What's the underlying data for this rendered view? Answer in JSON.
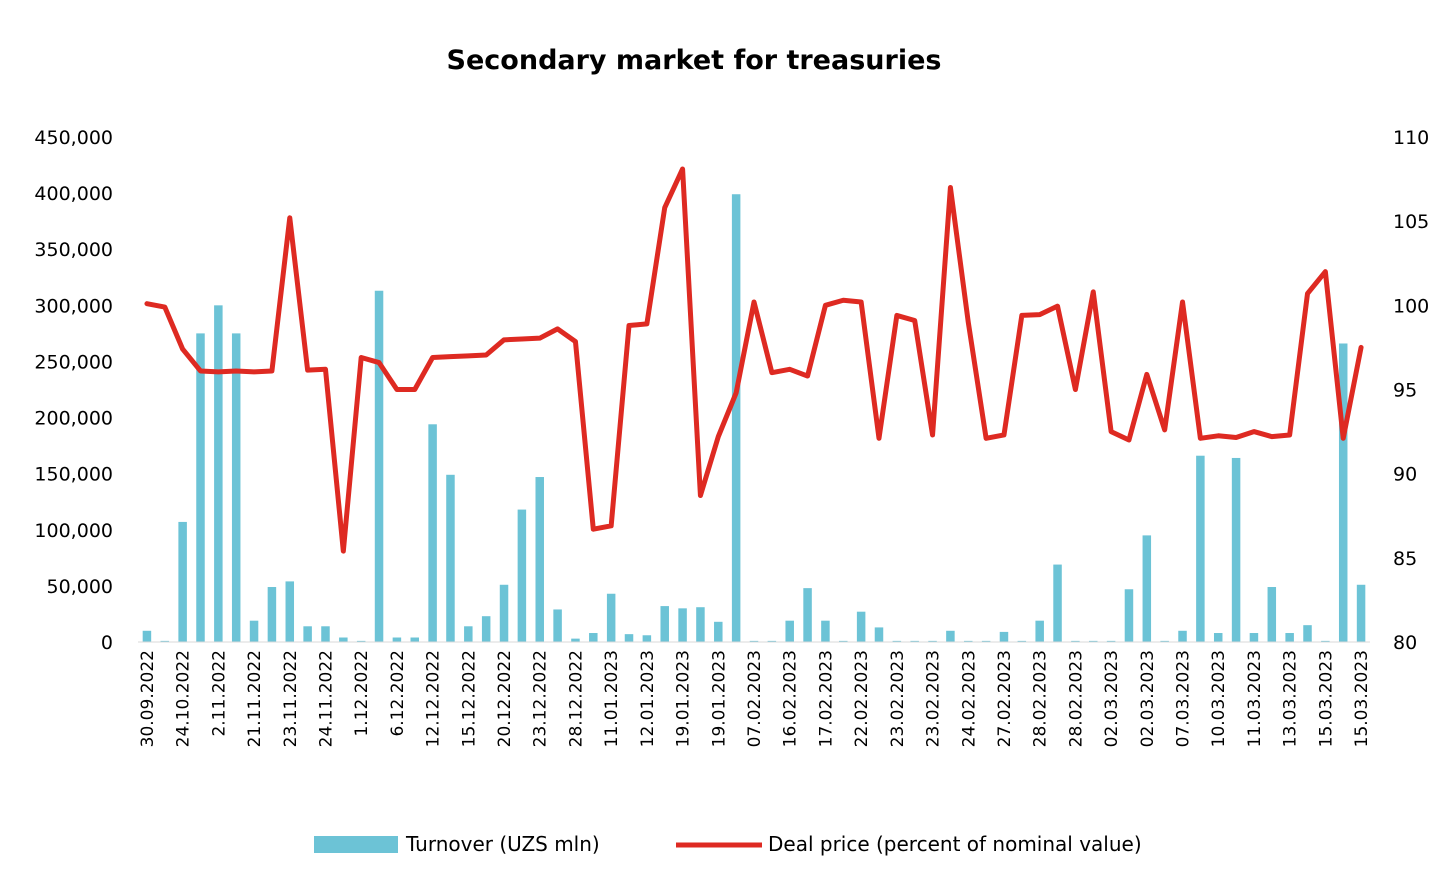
{
  "chart_data": {
    "type": "bar+line",
    "title": "Secondary market for treasuries",
    "colors": {
      "bars": "#6CC3D6",
      "line": "#DE2A22"
    },
    "y_left": {
      "min": 0,
      "max": 450000,
      "step": 50000,
      "ticks": [
        "0",
        "50,000",
        "100,000",
        "150,000",
        "200,000",
        "250,000",
        "300,000",
        "350,000",
        "400,000",
        "450,000"
      ]
    },
    "y_right": {
      "min": 80,
      "max": 110,
      "step": 5,
      "ticks": [
        "80",
        "85",
        "90",
        "95",
        "100",
        "105",
        "110"
      ]
    },
    "x_labels": [
      "30.09.2022",
      "24.10.2022",
      "2.11.2022",
      "21.11.2022",
      "23.11.2022",
      "24.11.2022",
      "1.12.2022",
      "6.12.2022",
      "12.12.2022",
      "15.12.2022",
      "20.12.2022",
      "23.12.2022",
      "28.12.2022",
      "11.01.2023",
      "12.01.2023",
      "19.01.2023",
      "19.01.2023",
      "07.02.2023",
      "16.02.2023",
      "17.02.2023",
      "22.02.2023",
      "23.02.2023",
      "23.02.2023",
      "24.02.2023",
      "27.02.2023",
      "28.02.2023",
      "28.02.2023",
      "02.03.2023",
      "02.03.2023",
      "07.03.2023",
      "10.03.2023",
      "11.03.2023",
      "13.03.2023",
      "15.03.2023",
      "15.03.2023"
    ],
    "series": [
      {
        "name": "Turnover (UZS mln)",
        "type": "bar",
        "axis": "left",
        "values": [
          10000,
          1000,
          107000,
          275000,
          300000,
          275000,
          19000,
          49000,
          54000,
          14000,
          14000,
          4000,
          1000,
          313000,
          4000,
          4000,
          194000,
          149000,
          14000,
          23000,
          51000,
          118000,
          147000,
          29000,
          3000,
          8000,
          43000,
          7000,
          6000,
          32000,
          30000,
          31000,
          18000,
          399000,
          1000,
          1000,
          19000,
          48000,
          19000,
          1000,
          27000,
          13000,
          1000,
          1000,
          1000,
          10000,
          1000,
          1000,
          9000,
          1000,
          19000,
          69000,
          1000,
          1000,
          1000,
          47000,
          95000,
          1000,
          10000,
          166000,
          8000,
          164000,
          8000,
          49000,
          8000,
          15000,
          1000,
          266000,
          51000
        ]
      },
      {
        "name": "Deal price (percent of nominal value)",
        "type": "line",
        "axis": "right",
        "values": [
          100.1,
          99.9,
          97.4,
          96.1,
          96.05,
          96.1,
          96.05,
          96.1,
          105.2,
          96.15,
          96.2,
          85.4,
          96.9,
          96.6,
          95,
          95,
          96.9,
          96.95,
          97,
          97.05,
          97.95,
          98,
          98.05,
          98.6,
          97.85,
          86.7,
          86.9,
          98.8,
          98.9,
          105.8,
          108.1,
          88.7,
          92.2,
          94.8,
          100.2,
          96,
          96.2,
          95.8,
          100,
          100.3,
          100.2,
          92.1,
          99.4,
          99.1,
          92.3,
          107,
          99,
          92.1,
          92.3,
          99.4,
          99.45,
          99.95,
          95,
          100.8,
          92.5,
          92,
          95.9,
          92.6,
          100.2,
          92.1,
          92.25,
          92.15,
          92.5,
          92.2,
          92.3,
          100.7,
          102,
          92.1,
          97.5
        ]
      }
    ],
    "legend": {
      "position": "bottom-center",
      "items": [
        "Turnover (UZS mln)",
        "Deal price (percent of nominal value)"
      ]
    }
  }
}
